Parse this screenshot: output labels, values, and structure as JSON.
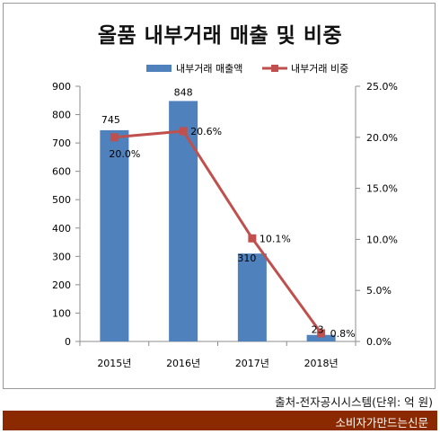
{
  "chart_data": {
    "type": "bar",
    "title": "올품 내부거래 매출 및 비중",
    "categories": [
      "2015년",
      "2016년",
      "2017년",
      "2018년"
    ],
    "series": [
      {
        "name": "내부거래 매출액",
        "type": "bar",
        "axis": "left",
        "values": [
          745,
          848,
          310,
          23
        ],
        "labels": [
          "745",
          "848",
          "310",
          "23"
        ],
        "color": "#4f81bd"
      },
      {
        "name": "내부거래 비중",
        "type": "line",
        "axis": "right",
        "values": [
          20.0,
          20.6,
          10.1,
          0.8
        ],
        "labels": [
          "20.0%",
          "20.6%",
          "10.1%",
          "0.8%"
        ],
        "color": "#c0504d"
      }
    ],
    "y_left": {
      "min": 0,
      "max": 900,
      "ticks": [
        "0",
        "100",
        "200",
        "300",
        "400",
        "500",
        "600",
        "700",
        "800",
        "900"
      ]
    },
    "y_right": {
      "min": 0,
      "max": 25,
      "ticks": [
        "0.0%",
        "5.0%",
        "10.0%",
        "15.0%",
        "20.0%",
        "25.0%"
      ]
    },
    "legend": "top-right",
    "grid": false
  },
  "source": "출처-전자공시시스템(단위: 억 원)",
  "brand": "소비자가만드는신문",
  "colors": {
    "bar": "#4f81bd",
    "line": "#c0504d",
    "footer": "#8b2a00"
  }
}
